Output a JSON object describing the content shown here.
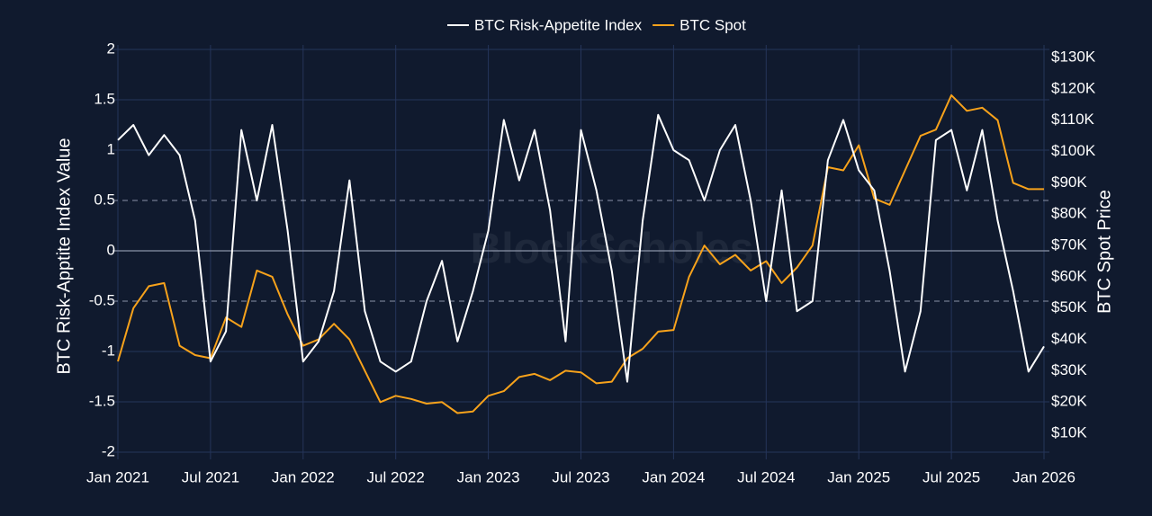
{
  "chart_data": {
    "type": "line",
    "watermark": "BlockScholes",
    "y_label": "BTC Risk-Apptite Index Value",
    "y2_label": "BTC Spot Price",
    "legend": "top",
    "grid": true,
    "reference_lines": [
      -0.5,
      0.5
    ],
    "x": [
      "2021-01",
      "2021-02",
      "2021-03",
      "2021-04",
      "2021-05",
      "2021-06",
      "2021-07",
      "2021-08",
      "2021-09",
      "2021-10",
      "2021-11",
      "2021-12",
      "2022-01",
      "2022-02",
      "2022-03",
      "2022-04",
      "2022-05",
      "2022-06",
      "2022-07",
      "2022-08",
      "2022-09",
      "2022-10",
      "2022-11",
      "2022-12",
      "2023-01",
      "2023-02",
      "2023-03",
      "2023-04",
      "2023-05",
      "2023-06",
      "2023-07",
      "2023-08",
      "2023-09",
      "2023-10",
      "2023-11",
      "2023-12",
      "2024-01",
      "2024-02",
      "2024-03",
      "2024-04",
      "2024-05",
      "2024-06",
      "2024-07",
      "2024-08",
      "2024-09",
      "2024-10",
      "2024-11",
      "2024-12",
      "2025-01",
      "2025-02",
      "2025-03",
      "2025-04",
      "2025-05",
      "2025-06",
      "2025-07",
      "2025-08",
      "2025-09",
      "2025-10",
      "2025-11",
      "2025-12",
      "2026-01"
    ],
    "xlim": [
      "2021-01",
      "2026-01"
    ],
    "xticks": [
      {
        "value": "2021-01",
        "label": "Jan 2021"
      },
      {
        "value": "2021-07",
        "label": "Jul 2021"
      },
      {
        "value": "2022-01",
        "label": "Jan 2022"
      },
      {
        "value": "2022-07",
        "label": "Jul 2022"
      },
      {
        "value": "2023-01",
        "label": "Jan 2023"
      },
      {
        "value": "2023-07",
        "label": "Jul 2023"
      },
      {
        "value": "2024-01",
        "label": "Jan 2024"
      },
      {
        "value": "2024-07",
        "label": "Jul 2024"
      },
      {
        "value": "2025-01",
        "label": "Jan 2025"
      },
      {
        "value": "2025-07",
        "label": "Jul 2025"
      },
      {
        "value": "2026-01",
        "label": "Jan 2026"
      }
    ],
    "ylim": [
      -2,
      2
    ],
    "yticks": [
      -2,
      -1.5,
      -1,
      -0.5,
      0,
      0.5,
      1,
      1.5,
      2
    ],
    "y2lim": [
      4000,
      132600
    ],
    "y2ticks": [
      {
        "value": 10000,
        "label": "$10K"
      },
      {
        "value": 20000,
        "label": "$20K"
      },
      {
        "value": 30000,
        "label": "$30K"
      },
      {
        "value": 40000,
        "label": "$40K"
      },
      {
        "value": 50000,
        "label": "$50K"
      },
      {
        "value": 60000,
        "label": "$60K"
      },
      {
        "value": 70000,
        "label": "$70K"
      },
      {
        "value": 80000,
        "label": "$80K"
      },
      {
        "value": 90000,
        "label": "$90K"
      },
      {
        "value": 100000,
        "label": "$100K"
      },
      {
        "value": 110000,
        "label": "$110K"
      },
      {
        "value": 120000,
        "label": "$120K"
      },
      {
        "value": 130000,
        "label": "$130K"
      }
    ],
    "series": [
      {
        "name": "BTC Risk-Appetite Index",
        "color": "#ffffff",
        "axis": "y",
        "values": [
          1.1,
          1.25,
          0.95,
          1.15,
          0.95,
          0.3,
          -1.1,
          -0.8,
          1.2,
          0.5,
          1.25,
          0.2,
          -1.1,
          -0.9,
          -0.4,
          0.7,
          -0.6,
          -1.1,
          -1.2,
          -1.1,
          -0.5,
          -0.1,
          -0.9,
          -0.4,
          0.2,
          1.3,
          0.7,
          1.2,
          0.4,
          -0.9,
          1.2,
          0.6,
          -0.2,
          -1.3,
          0.3,
          1.35,
          1.0,
          0.9,
          0.5,
          1.0,
          1.25,
          0.5,
          -0.5,
          0.6,
          -0.6,
          -0.5,
          0.9,
          1.3,
          0.8,
          0.6,
          -0.2,
          -1.2,
          -0.6,
          1.1,
          1.2,
          0.6,
          1.2,
          0.3,
          -0.4,
          -1.2,
          -0.95
        ]
      },
      {
        "name": "BTC Spot",
        "color": "#f7a21b",
        "axis": "y2",
        "values": [
          33000,
          50000,
          57000,
          58000,
          38000,
          35000,
          34000,
          47000,
          44000,
          62000,
          60000,
          48000,
          38000,
          40000,
          45000,
          40000,
          30000,
          20000,
          22000,
          21000,
          19500,
          20000,
          16500,
          17000,
          22000,
          23500,
          28000,
          29000,
          27000,
          30000,
          29500,
          26000,
          26500,
          34000,
          37000,
          42500,
          43000,
          60000,
          70000,
          64000,
          67000,
          62000,
          65000,
          58000,
          63000,
          70000,
          95000,
          94000,
          102000,
          85000,
          83000,
          94000,
          105000,
          107000,
          118000,
          113000,
          114000,
          110000,
          90000,
          88000,
          88000
        ]
      }
    ]
  }
}
